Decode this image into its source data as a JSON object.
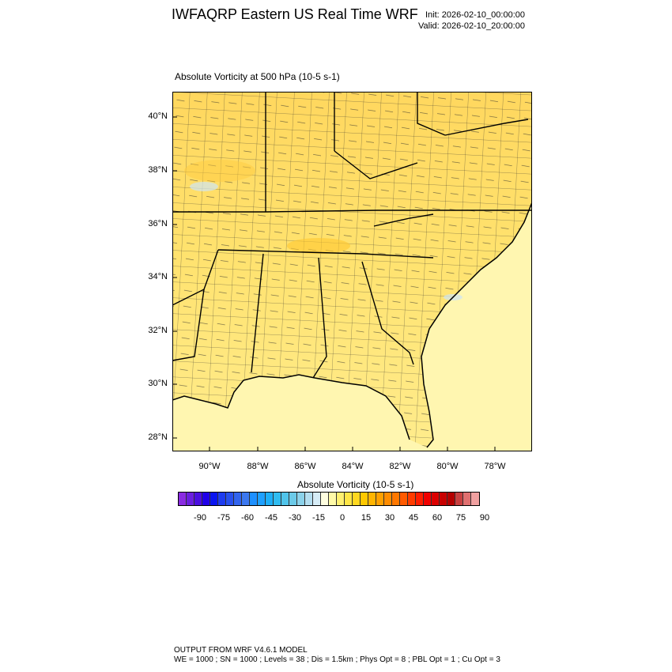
{
  "header": {
    "title": "IWFAQRP Eastern US Real Time WRF",
    "init": "Init: 2026-02-10_00:00:00",
    "valid": "Valid: 2026-02-10_20:00:00"
  },
  "field_title": "Absolute Vorticity at 500 hPa   (10-5 s-1)",
  "map": {
    "lat_labels": [
      "40°N",
      "38°N",
      "36°N",
      "34°N",
      "32°N",
      "30°N",
      "28°N"
    ],
    "lon_labels": [
      "90°W",
      "88°W",
      "86°W",
      "84°W",
      "82°W",
      "80°W",
      "78°W"
    ],
    "land_color": "#ffe98a",
    "ocean_color": "#fff8b4"
  },
  "colorbar": {
    "title": "Absolute Vorticity  (10-5 s-1)",
    "tick_labels": [
      "-90",
      "-75",
      "-60",
      "-45",
      "-30",
      "-15",
      "0",
      "15",
      "30",
      "45",
      "60",
      "75",
      "90"
    ],
    "colors": [
      "#8a2be2",
      "#6a1ee0",
      "#4b0ee0",
      "#2000e8",
      "#0a14f0",
      "#1e3cf0",
      "#2850ee",
      "#3264ee",
      "#3c78f0",
      "#1e90ff",
      "#1ea0ff",
      "#1eaff8",
      "#30bcf0",
      "#50c4ea",
      "#6ccae8",
      "#8cd2ea",
      "#b4def0",
      "#d6ecf6",
      "#fffee0",
      "#fffaa8",
      "#fff070",
      "#ffe646",
      "#ffd820",
      "#ffc800",
      "#ffb400",
      "#ffa000",
      "#ff8c00",
      "#ff7800",
      "#ff5a00",
      "#ff3c00",
      "#ff1e00",
      "#f00000",
      "#dc0000",
      "#c80000",
      "#b40000",
      "#c84040",
      "#e07070",
      "#f0a0a0"
    ]
  },
  "footer": {
    "line1": "OUTPUT FROM WRF V4.6.1 MODEL",
    "line2": "WE = 1000 ; SN = 1000 ; Levels = 38 ; Dis = 1.5km ; Phys Opt = 8 ; PBL Opt = 1 ; Cu Opt = 3"
  }
}
